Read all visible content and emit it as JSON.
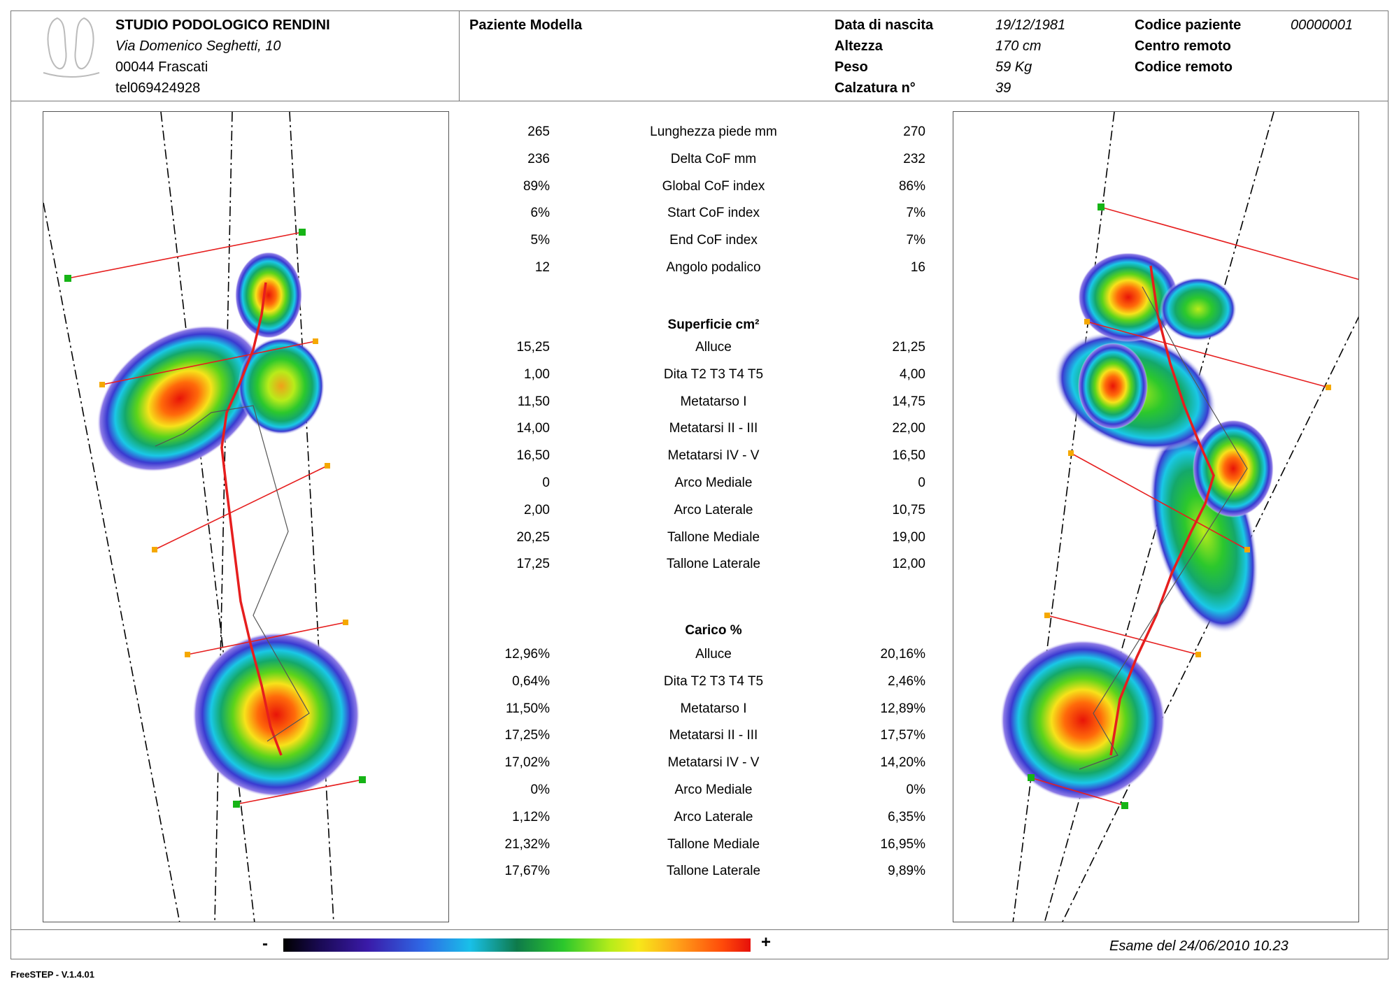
{
  "header": {
    "studio_name": "STUDIO PODOLOGICO RENDINI",
    "address_line1": "Via Domenico Seghetti, 10",
    "address_line2": "00044 Frascati",
    "phone": "tel069424928",
    "patient_name": "Paziente Modella",
    "fields": {
      "birth_label": "Data di nascita",
      "birth_value": "19/12/1981",
      "height_label": "Altezza",
      "height_value": "170 cm",
      "weight_label": "Peso",
      "weight_value": "59 Kg",
      "shoe_label": "Calzatura n°",
      "shoe_value": "39",
      "code_label": "Codice paziente",
      "code_value": "00000001",
      "remote_center_label": "Centro remoto",
      "remote_code_label": "Codice remoto"
    }
  },
  "metrics": [
    {
      "left": "265",
      "label": "Lunghezza piede mm",
      "right": "270"
    },
    {
      "left": "236",
      "label": "Delta CoF mm",
      "right": "232"
    },
    {
      "left": "89%",
      "label": "Global CoF index",
      "right": "86%"
    },
    {
      "left": "6%",
      "label": "Start CoF index",
      "right": "7%"
    },
    {
      "left": "5%",
      "label": "End CoF index",
      "right": "7%"
    },
    {
      "left": "12",
      "label": "Angolo podalico",
      "right": "16"
    }
  ],
  "surface": {
    "title": "Superficie cm²",
    "rows": [
      {
        "left": "15,25",
        "label": "Alluce",
        "right": "21,25"
      },
      {
        "left": "1,00",
        "label": "Dita T2 T3 T4 T5",
        "right": "4,00"
      },
      {
        "left": "11,50",
        "label": "Metatarso I",
        "right": "14,75"
      },
      {
        "left": "14,00",
        "label": "Metatarsi II - III",
        "right": "22,00"
      },
      {
        "left": "16,50",
        "label": "Metatarsi IV - V",
        "right": "16,50"
      },
      {
        "left": "0",
        "label": "Arco Mediale",
        "right": "0"
      },
      {
        "left": "2,00",
        "label": "Arco Laterale",
        "right": "10,75"
      },
      {
        "left": "20,25",
        "label": "Tallone Mediale",
        "right": "19,00"
      },
      {
        "left": "17,25",
        "label": "Tallone Laterale",
        "right": "12,00"
      }
    ]
  },
  "load": {
    "title": "Carico %",
    "rows": [
      {
        "left": "12,96%",
        "label": "Alluce",
        "right": "20,16%"
      },
      {
        "left": "0,64%",
        "label": "Dita T2 T3 T4 T5",
        "right": "2,46%"
      },
      {
        "left": "11,50%",
        "label": "Metatarso I",
        "right": "12,89%"
      },
      {
        "left": "17,25%",
        "label": "Metatarsi II - III",
        "right": "17,57%"
      },
      {
        "left": "17,02%",
        "label": "Metatarsi IV - V",
        "right": "14,20%"
      },
      {
        "left": "0%",
        "label": "Arco Mediale",
        "right": "0%"
      },
      {
        "left": "1,12%",
        "label": "Arco Laterale",
        "right": "6,35%"
      },
      {
        "left": "21,32%",
        "label": "Tallone Mediale",
        "right": "16,95%"
      },
      {
        "left": "17,67%",
        "label": "Tallone Laterale",
        "right": "9,89%"
      }
    ]
  },
  "footer": {
    "scale_min": "-",
    "scale_max": "+",
    "exam_date": "Esame del 24/06/2010 10.23",
    "version": "FreeSTEP - V.1.4.01"
  },
  "colors": {
    "red_line": "#e61e1e",
    "green_marker": "#16b416",
    "orange_marker": "#f5a800"
  }
}
